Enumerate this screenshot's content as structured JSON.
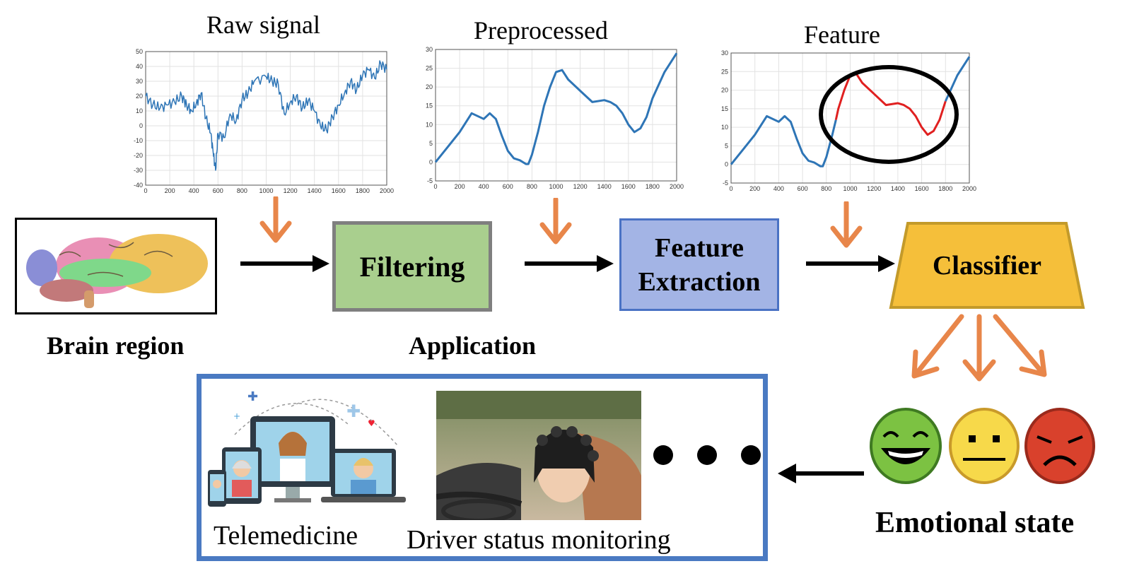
{
  "titles": {
    "raw": "Raw signal",
    "pre": "Preprocessed",
    "feature": "Feature"
  },
  "labels": {
    "brain_region": "Brain region",
    "application": "Application",
    "emotional_state": "Emotional state",
    "telemedicine": "Telemedicine",
    "driver": "Driver status monitoring",
    "ellipsis": "• • •"
  },
  "blocks": {
    "filtering": "Filtering",
    "feature_extraction_line1": "Feature",
    "feature_extraction_line2": "Extraction",
    "classifier": "Classifier"
  },
  "colors": {
    "signal_blue": "#2e75b6",
    "feature_red": "#e02020",
    "arrow_orange": "#e8864a",
    "filter_green": "#a9cf8e",
    "feature_blue": "#a3b4e5",
    "classifier_gold": "#f5bf3a",
    "app_frame": "#4a7ac2"
  },
  "chart_data": [
    {
      "type": "line",
      "title": "Raw signal",
      "x_ticks": [
        0,
        200,
        400,
        600,
        800,
        1000,
        1200,
        1400,
        1600,
        1800,
        2000
      ],
      "y_ticks": [
        50,
        40,
        30,
        20,
        10,
        0,
        -10,
        -20,
        -30,
        -40
      ],
      "xlim": [
        0,
        2000
      ],
      "ylim": [
        -40,
        50
      ],
      "grid": true,
      "series": [
        {
          "color": "#2e75b6",
          "x": [
            0,
            60,
            120,
            180,
            240,
            300,
            340,
            380,
            420,
            460,
            500,
            540,
            560,
            580,
            600,
            650,
            700,
            750,
            800,
            850,
            900,
            1000,
            1050,
            1100,
            1150,
            1200,
            1250,
            1300,
            1350,
            1400,
            1450,
            1500,
            1550,
            1600,
            1650,
            1700,
            1750,
            1800,
            1850,
            1900,
            1950,
            2000
          ],
          "y": [
            20,
            14,
            12,
            14,
            16,
            20,
            14,
            10,
            15,
            22,
            5,
            -5,
            -18,
            -30,
            -5,
            -8,
            8,
            3,
            18,
            22,
            30,
            33,
            30,
            28,
            8,
            16,
            20,
            12,
            17,
            10,
            0,
            -3,
            6,
            14,
            22,
            30,
            24,
            34,
            38,
            32,
            42,
            38
          ]
        }
      ]
    },
    {
      "type": "line",
      "title": "Preprocessed",
      "x_ticks": [
        0,
        200,
        400,
        600,
        800,
        1000,
        1200,
        1400,
        1600,
        1800,
        2000
      ],
      "y_ticks": [
        30,
        25,
        20,
        15,
        10,
        5,
        0,
        -5
      ],
      "xlim": [
        0,
        2000
      ],
      "ylim": [
        -5,
        30
      ],
      "grid": true,
      "series": [
        {
          "color": "#2e75b6",
          "x": [
            0,
            100,
            200,
            300,
            400,
            450,
            500,
            550,
            600,
            650,
            700,
            750,
            770,
            800,
            850,
            900,
            950,
            1000,
            1050,
            1100,
            1200,
            1300,
            1400,
            1450,
            1500,
            1550,
            1600,
            1650,
            1700,
            1750,
            1800,
            1900,
            2000
          ],
          "y": [
            0,
            4,
            8,
            13,
            11.5,
            13,
            11.5,
            7,
            3,
            1,
            0.5,
            -0.5,
            -0.5,
            2,
            8,
            15,
            20,
            24,
            24.5,
            22,
            19,
            16,
            16.5,
            16,
            15,
            13,
            10,
            8,
            9,
            12,
            17,
            24,
            29
          ]
        }
      ]
    },
    {
      "type": "line",
      "title": "Feature",
      "x_ticks": [
        0,
        200,
        400,
        600,
        800,
        1000,
        1200,
        1400,
        1600,
        1800,
        2000
      ],
      "y_ticks": [
        30,
        25,
        20,
        15,
        10,
        5,
        0,
        -5
      ],
      "xlim": [
        0,
        2000
      ],
      "ylim": [
        -5,
        30
      ],
      "grid": true,
      "series": [
        {
          "color": "#2e75b6",
          "x": [
            0,
            100,
            200,
            300,
            400,
            450,
            500,
            550,
            600,
            650,
            700,
            750,
            770,
            800,
            850,
            880
          ],
          "y": [
            0,
            4,
            8,
            13,
            11.5,
            13,
            11.5,
            7,
            3,
            1,
            0.5,
            -0.5,
            -0.5,
            2,
            8,
            12
          ]
        },
        {
          "color": "#e02020",
          "x": [
            880,
            900,
            950,
            1000,
            1050,
            1100,
            1200,
            1300,
            1400,
            1450,
            1500,
            1550,
            1600,
            1650,
            1700,
            1750,
            1800
          ],
          "y": [
            12,
            15,
            20,
            24,
            24.5,
            22,
            19,
            16,
            16.5,
            16,
            15,
            13,
            10,
            8,
            9,
            12,
            17
          ]
        },
        {
          "color": "#2e75b6",
          "x": [
            1800,
            1900,
            2000
          ],
          "y": [
            17,
            24,
            29
          ]
        }
      ]
    }
  ]
}
